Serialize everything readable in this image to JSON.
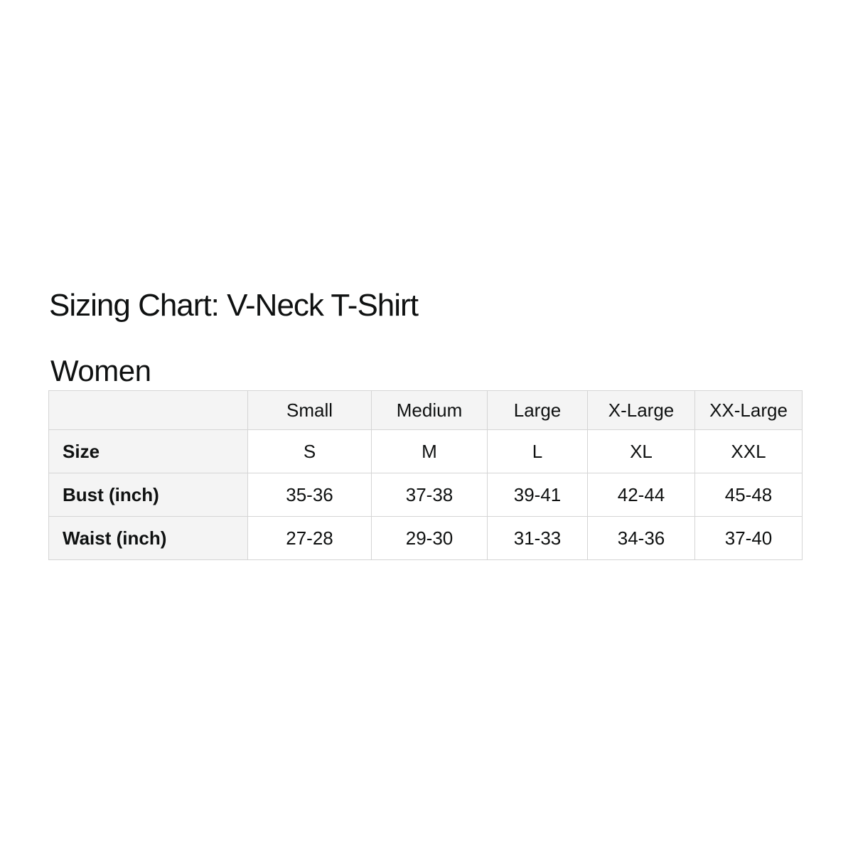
{
  "title": "Sizing Chart: V-Neck T-Shirt",
  "section": "Women",
  "chart_data": {
    "type": "table",
    "title": "Sizing Chart: V-Neck T-Shirt",
    "subtitle": "Women",
    "columns": [
      "",
      "Small",
      "Medium",
      "Large",
      "X-Large",
      "XX-Large"
    ],
    "rows": [
      [
        "Size",
        "S",
        "M",
        "L",
        "XL",
        "XXL"
      ],
      [
        "Bust (inch)",
        "35-36",
        "37-38",
        "39-41",
        "42-44",
        "45-48"
      ],
      [
        "Waist (inch)",
        "27-28",
        "29-30",
        "31-33",
        "34-36",
        "37-40"
      ]
    ]
  },
  "colors": {
    "background": "#ffffff",
    "text": "#0f1111",
    "table_border": "#d5d5d5",
    "header_cell_bg": "#f4f4f4",
    "data_cell_bg": "#ffffff"
  }
}
